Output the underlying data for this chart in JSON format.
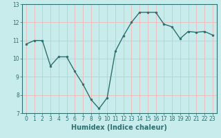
{
  "x": [
    0,
    1,
    2,
    3,
    4,
    5,
    6,
    7,
    8,
    9,
    10,
    11,
    12,
    13,
    14,
    15,
    16,
    17,
    18,
    19,
    20,
    21,
    22,
    23
  ],
  "y": [
    10.8,
    11.0,
    11.0,
    9.6,
    10.1,
    10.1,
    9.3,
    8.6,
    7.75,
    7.25,
    7.85,
    10.4,
    11.25,
    12.0,
    12.55,
    12.55,
    12.55,
    11.9,
    11.75,
    11.1,
    11.5,
    11.45,
    11.5,
    11.3
  ],
  "line_color": "#2d6e6e",
  "marker": "o",
  "marker_size": 2,
  "line_width": 1.0,
  "bg_color": "#c8ecec",
  "grid_color": "#f0b8b8",
  "xlabel": "Humidex (Indice chaleur)",
  "xlabel_fontsize": 7,
  "xlabel_weight": "bold",
  "ylim": [
    7,
    13
  ],
  "xlim": [
    -0.5,
    23.5
  ],
  "yticks": [
    7,
    8,
    9,
    10,
    11,
    12,
    13
  ],
  "xticks": [
    0,
    1,
    2,
    3,
    4,
    5,
    6,
    7,
    8,
    9,
    10,
    11,
    12,
    13,
    14,
    15,
    16,
    17,
    18,
    19,
    20,
    21,
    22,
    23
  ],
  "tick_fontsize": 5.5,
  "axis_color": "#2d6e6e"
}
